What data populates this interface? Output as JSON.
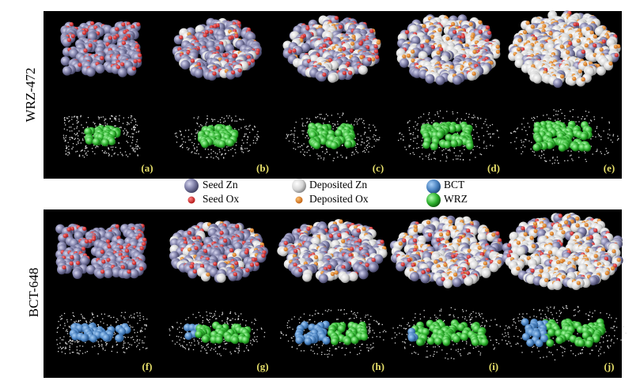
{
  "row_labels": [
    "WRZ-472",
    "BCT-648"
  ],
  "panel_labels": [
    "(a)",
    "(b)",
    "(c)",
    "(d)",
    "(e)",
    "(f)",
    "(g)",
    "(h)",
    "(i)",
    "(j)"
  ],
  "legend": [
    "Seed Zn",
    "Seed Ox",
    "Deposited Zn",
    "Deposited Ox",
    "BCT",
    "WRZ"
  ]
}
